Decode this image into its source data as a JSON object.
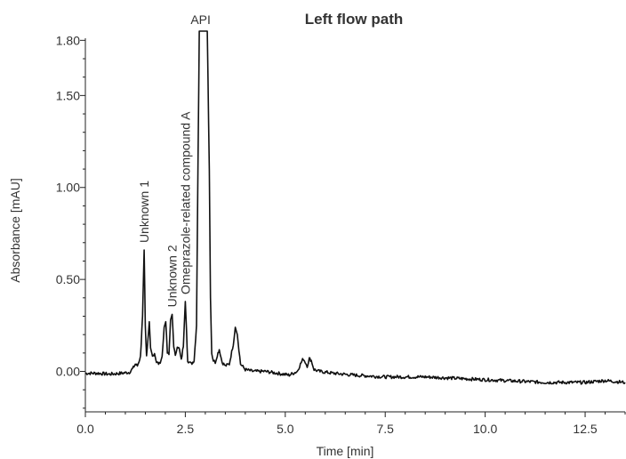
{
  "chart_data": {
    "type": "line",
    "title": "Left flow path",
    "xlabel": "Time [min]",
    "ylabel": "Absorbance [mAU]",
    "xlim": [
      0,
      13.5
    ],
    "ylim": [
      -0.22,
      1.85
    ],
    "x_ticks": [
      0.0,
      2.5,
      5.0,
      7.5,
      10.0,
      12.5
    ],
    "x_tick_labels": [
      "0.0",
      "2.5",
      "5.0",
      "7.5",
      "10.0",
      "12.5"
    ],
    "y_ticks": [
      0.0,
      0.5,
      1.0,
      1.5,
      1.8
    ],
    "y_tick_labels": [
      "0.00",
      "0.50",
      "1.00",
      "1.50",
      "1.80"
    ],
    "grid": false,
    "series": [
      {
        "x": [
          0.0,
          0.3,
          0.6,
          0.9,
          1.1,
          1.2,
          1.25,
          1.3,
          1.38,
          1.43,
          1.47,
          1.5,
          1.53,
          1.56,
          1.6,
          1.63,
          1.68,
          1.73,
          1.78,
          1.85,
          1.92,
          1.97,
          2.01,
          2.05,
          2.09,
          2.13,
          2.17,
          2.21,
          2.25,
          2.3,
          2.35,
          2.4,
          2.45,
          2.5,
          2.53,
          2.56,
          2.6,
          2.65,
          2.72,
          2.78,
          2.82,
          2.85,
          2.88,
          2.9,
          3.05,
          3.1,
          3.13,
          3.16,
          3.2,
          3.25,
          3.3,
          3.35,
          3.42,
          3.5,
          3.6,
          3.7,
          3.75,
          3.8,
          3.88,
          4.0,
          4.2,
          4.5,
          4.8,
          5.1,
          5.3,
          5.38,
          5.45,
          5.5,
          5.55,
          5.6,
          5.65,
          5.72,
          5.85,
          6.2,
          6.7,
          7.5,
          8.5,
          9.5,
          10.5,
          11.5,
          12.5,
          13.0,
          13.5
        ],
        "values": [
          -0.01,
          -0.01,
          -0.015,
          -0.01,
          -0.005,
          0.02,
          0.04,
          0.03,
          0.08,
          0.3,
          0.66,
          0.25,
          0.08,
          0.15,
          0.27,
          0.12,
          0.08,
          0.1,
          0.05,
          0.04,
          0.08,
          0.24,
          0.27,
          0.1,
          0.09,
          0.28,
          0.31,
          0.14,
          0.08,
          0.14,
          0.12,
          0.06,
          0.14,
          0.38,
          0.22,
          0.06,
          0.05,
          0.04,
          0.06,
          0.25,
          1.2,
          1.85,
          1.85,
          1.85,
          1.85,
          1.1,
          0.4,
          0.1,
          0.06,
          0.05,
          0.09,
          0.12,
          0.05,
          0.03,
          0.04,
          0.15,
          0.24,
          0.2,
          0.04,
          0.01,
          0.0,
          0.0,
          -0.01,
          -0.02,
          0.0,
          0.04,
          0.07,
          0.05,
          0.03,
          0.07,
          0.06,
          0.01,
          0.0,
          -0.01,
          -0.02,
          -0.03,
          -0.03,
          -0.04,
          -0.05,
          -0.06,
          -0.06,
          -0.05,
          -0.06
        ]
      }
    ],
    "annotations": [
      {
        "text": "Unknown 1",
        "x": 1.47,
        "y": 0.66
      },
      {
        "text": "Unknown 2",
        "x": 2.17,
        "y": 0.31
      },
      {
        "text": "Omeprazole-related compound A",
        "x": 2.5,
        "y": 0.38
      },
      {
        "text": "API",
        "x": 2.95,
        "y": 1.85
      }
    ]
  }
}
